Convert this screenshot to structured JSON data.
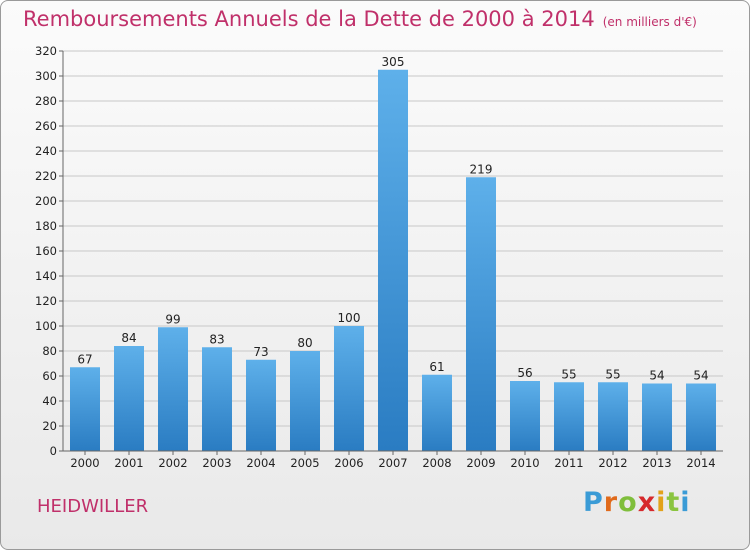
{
  "header": {
    "title": "Remboursements Annuels de la Dette de 2000 à 2014",
    "unit": "(en milliers d'€)"
  },
  "footer": {
    "commune": "HEIDWILLER",
    "logo_letters": [
      "P",
      "r",
      "o",
      "x",
      "i",
      "t",
      "i"
    ],
    "logo_colors": [
      "#3a9bd6",
      "#e06a1b",
      "#7fbe3c",
      "#d6292c",
      "#e2a21a",
      "#8ac43f",
      "#3a9bd6"
    ]
  },
  "chart_data": {
    "type": "bar",
    "categories": [
      "2000",
      "2001",
      "2002",
      "2003",
      "2004",
      "2005",
      "2006",
      "2007",
      "2008",
      "2009",
      "2010",
      "2011",
      "2012",
      "2013",
      "2014"
    ],
    "values": [
      67,
      84,
      99,
      83,
      73,
      80,
      100,
      305,
      61,
      219,
      56,
      55,
      55,
      54,
      54
    ],
    "ylim": [
      0,
      320
    ],
    "yticks": [
      0,
      20,
      40,
      60,
      80,
      100,
      120,
      140,
      160,
      180,
      200,
      220,
      240,
      260,
      280,
      300,
      320
    ],
    "grid": true,
    "bar_color_top": "#5eb0ea",
    "bar_color_bottom": "#2a7cc2"
  }
}
